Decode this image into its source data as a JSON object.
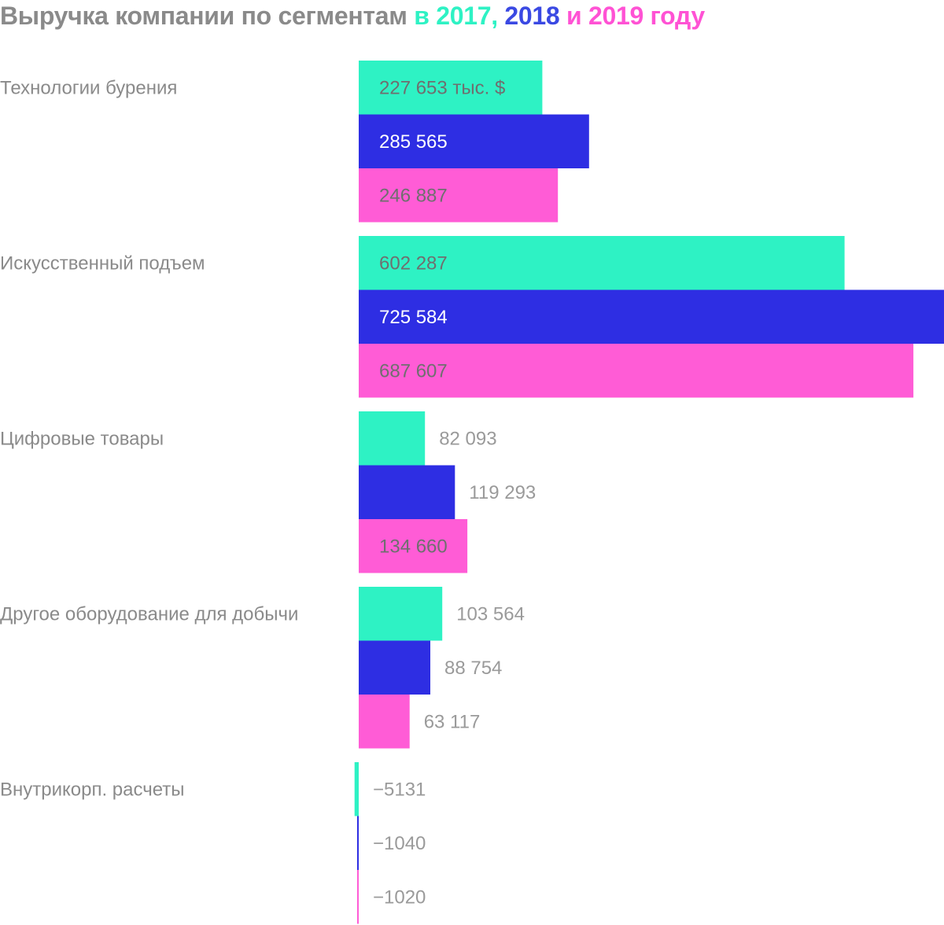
{
  "title": {
    "main": "Выручка компании по сегментам ",
    "pre": "в ",
    "y2017": "2017,",
    "space1": " ",
    "y2018": "2018",
    "and": " и ",
    "y2019": "2019 году"
  },
  "chart_data": {
    "type": "bar",
    "orientation": "horizontal",
    "title": "Выручка компании по сегментам в 2017, 2018 и 2019 году",
    "unit": "тыс. $",
    "categories": [
      "Технологии бурения",
      "Искусственный подъем",
      "Цифровые товары",
      "Другое оборудование для добычи",
      "Внутрикорп. расчеты"
    ],
    "series": [
      {
        "name": "2017",
        "color": "#2ef2c4",
        "values": [
          227653,
          602287,
          82093,
          103564,
          -5131
        ],
        "labels": [
          "227 653 тыс. $",
          "602 287",
          "82 093",
          "103 564",
          "−5131"
        ]
      },
      {
        "name": "2018",
        "color": "#2e2ee3",
        "values": [
          285565,
          725584,
          119293,
          88754,
          -1040
        ],
        "labels": [
          "285 565",
          "725 584",
          "119 293",
          "88 754",
          "−1040"
        ]
      },
      {
        "name": "2019",
        "color": "#ff5cd6",
        "values": [
          246887,
          687607,
          134660,
          63117,
          -1020
        ],
        "labels": [
          "246 887",
          "687 607",
          "134 660",
          "63 117",
          "−1020"
        ]
      }
    ],
    "grid": false,
    "legend": "in-title",
    "label_color_inside_light": "#6f6f6f",
    "label_color_inside_dark": "#ffffff",
    "label_color_outside": "#9a9a9a"
  }
}
